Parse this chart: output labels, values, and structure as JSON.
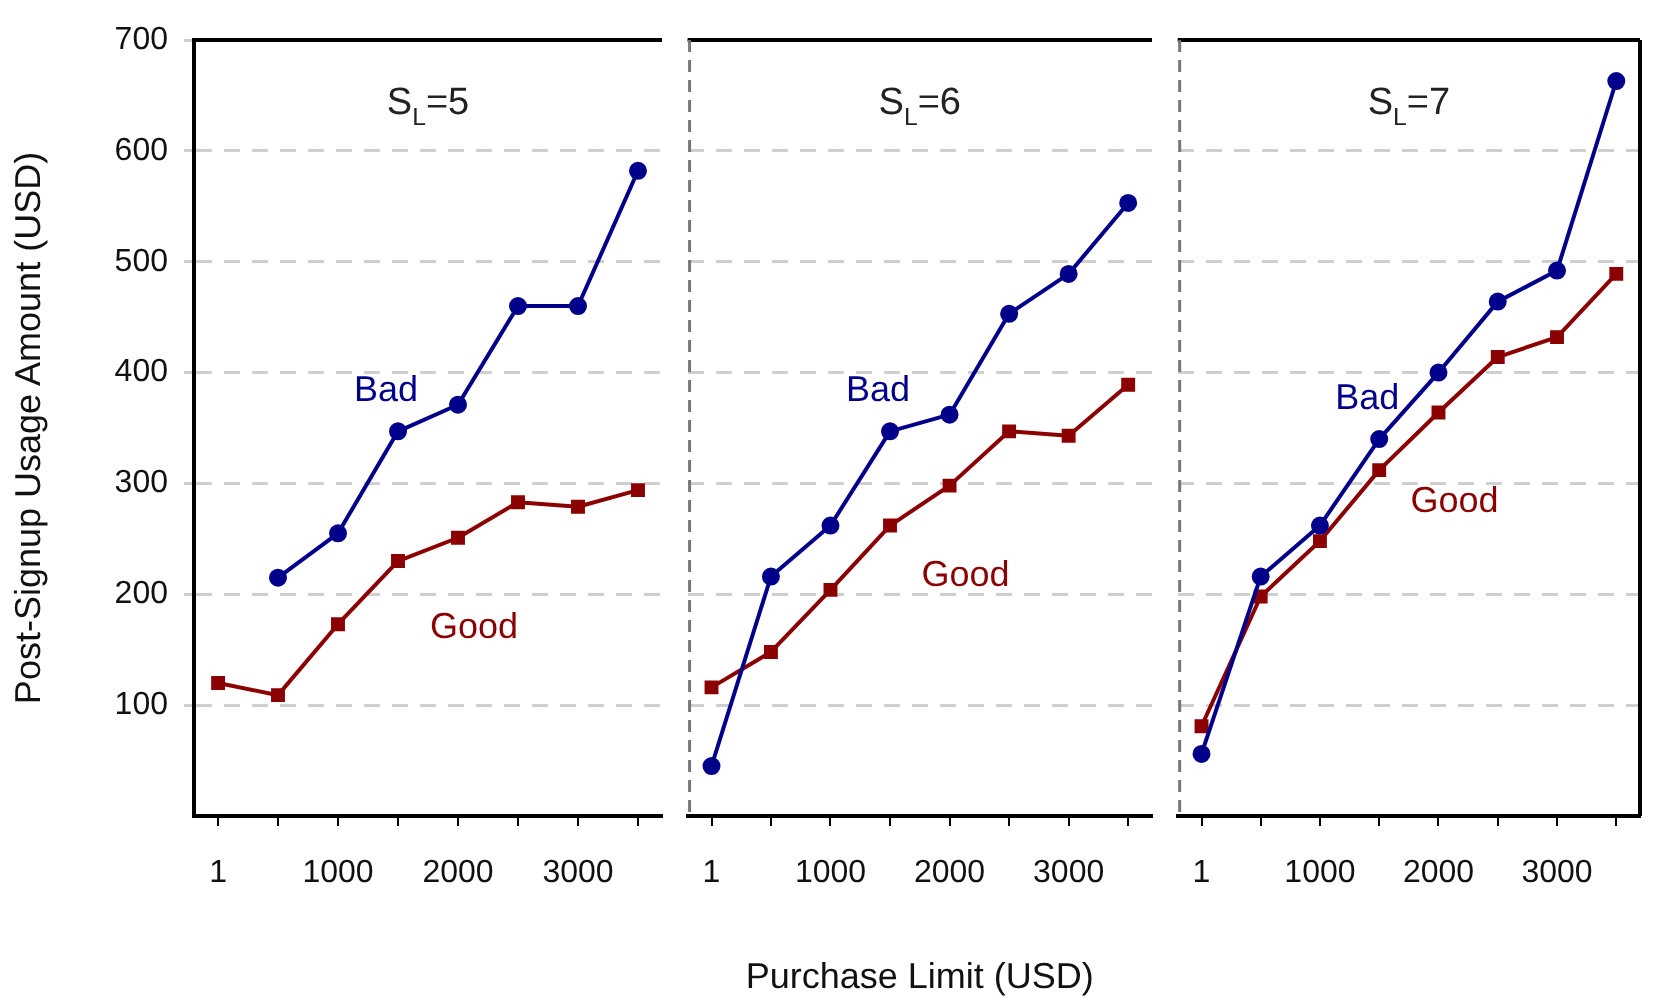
{
  "chart_data": [
    {
      "type": "line",
      "title": "S$_{L}$=5",
      "ylabel": "Post-Signup Usage Amount (USD)",
      "x": [
        1,
        500,
        1000,
        1500,
        2000,
        2500,
        3000,
        3500
      ],
      "xlim": [
        -200,
        3700
      ],
      "xticks": [
        1,
        {
          "value": 500,
          "label": null
        },
        1000,
        {
          "value": 1500,
          "label": null
        },
        2000,
        {
          "value": 2500,
          "label": null
        },
        3000,
        {
          "value": 3500,
          "label": null
        }
      ],
      "ylim": [
        0,
        700
      ],
      "yticks": [
        100,
        200,
        300,
        400,
        500,
        600,
        700
      ],
      "grid": "y",
      "series": [
        {
          "name": "Bad",
          "color": "#00008b",
          "marker": "circle",
          "values": [
            null,
            215,
            255,
            347,
            371,
            460,
            460,
            582
          ]
        },
        {
          "name": "Good",
          "color": "#8b0000",
          "marker": "square",
          "values": [
            120,
            109,
            173,
            230,
            251,
            283,
            279,
            294
          ]
        }
      ]
    },
    {
      "type": "line",
      "title": "S$_{L}$=6",
      "xlabel": "Purchase Limit (USD)",
      "tick_labels": "x",
      "x": [
        1,
        500,
        1000,
        1500,
        2000,
        2500,
        3000,
        3500
      ],
      "xlim": [
        -200,
        3700
      ],
      "xticks": [
        1,
        {
          "value": 500,
          "label": null
        },
        1000,
        {
          "value": 1500,
          "label": null
        },
        2000,
        {
          "value": 2500,
          "label": null
        },
        3000,
        {
          "value": 3500,
          "label": null
        }
      ],
      "ylim": [
        0,
        700
      ],
      "yticks": [
        100,
        200,
        300,
        400,
        500,
        600,
        700
      ],
      "grid": "y",
      "series": [
        {
          "name": "Bad",
          "color": "#00008b",
          "marker": "circle",
          "values": [
            45,
            216,
            262,
            347,
            362,
            453,
            489,
            553
          ]
        },
        {
          "name": "Good",
          "color": "#8b0000",
          "marker": "square",
          "values": [
            116,
            148,
            204,
            262,
            298,
            347,
            343,
            389
          ]
        }
      ]
    },
    {
      "type": "line",
      "title": "S$_{L}$=7",
      "tick_labels": "x",
      "x": [
        1,
        500,
        1000,
        1500,
        2000,
        2500,
        3000,
        3500
      ],
      "xlim": [
        -200,
        3700
      ],
      "xticks": [
        1,
        {
          "value": 500,
          "label": null
        },
        1000,
        {
          "value": 1500,
          "label": null
        },
        2000,
        {
          "value": 2500,
          "label": null
        },
        3000,
        {
          "value": 3500,
          "label": null
        }
      ],
      "ylim": [
        0,
        700
      ],
      "yticks": [
        100,
        200,
        300,
        400,
        500,
        600,
        700
      ],
      "grid": "y",
      "series": [
        {
          "name": "Bad",
          "color": "#00008b",
          "marker": "circle",
          "values": [
            56,
            216,
            262,
            340,
            400,
            464,
            492,
            663
          ]
        },
        {
          "name": "Good",
          "color": "#8b0000",
          "marker": "square",
          "values": [
            81,
            198,
            248,
            312,
            364,
            414,
            432,
            489
          ]
        }
      ]
    }
  ]
}
